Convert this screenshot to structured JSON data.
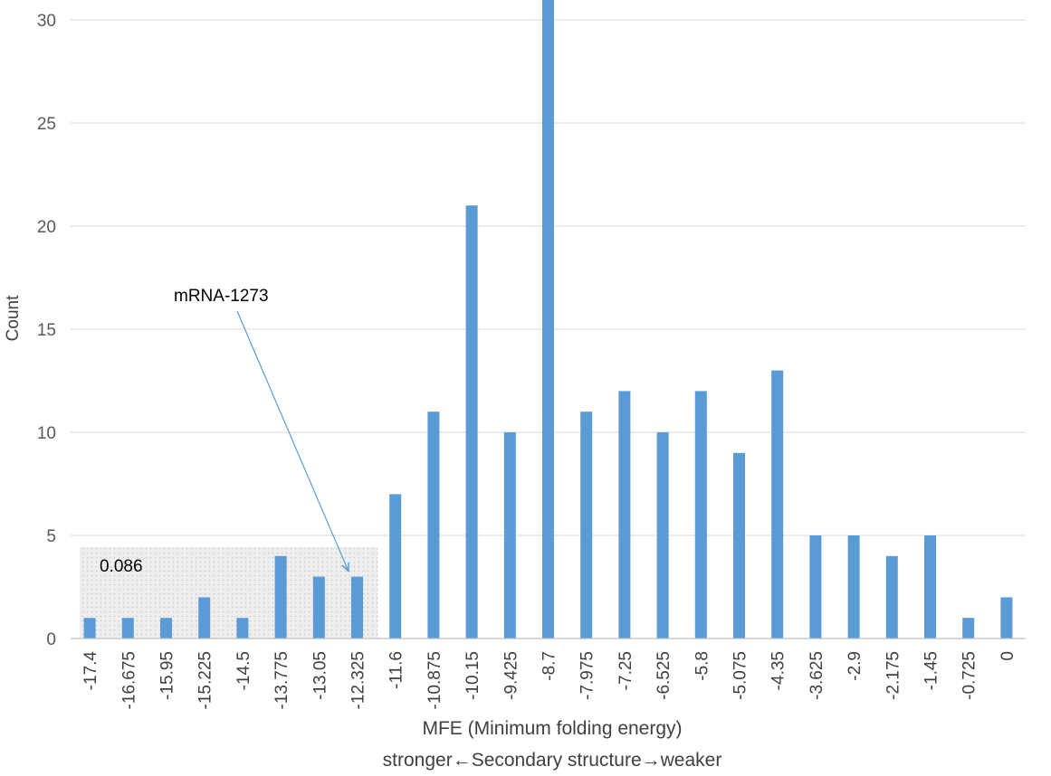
{
  "chart_data": {
    "type": "bar",
    "categories": [
      "-17.4",
      "-16.675",
      "-15.95",
      "-15.225",
      "-14.5",
      "-13.775",
      "-13.05",
      "-12.325",
      "-11.6",
      "-10.875",
      "-10.15",
      "-9.425",
      "-8.7",
      "-7.975",
      "-7.25",
      "-6.525",
      "-5.8",
      "-5.075",
      "-4.35",
      "-3.625",
      "-2.9",
      "-2.175",
      "-1.45",
      "-0.725",
      "0"
    ],
    "values": [
      1,
      1,
      1,
      2,
      1,
      4,
      3,
      3,
      7,
      11,
      21,
      10,
      31,
      11,
      12,
      10,
      12,
      9,
      13,
      5,
      5,
      4,
      5,
      1,
      2
    ],
    "xlabel": "MFE (Minimum folding energy)",
    "xlabel_sub": "stronger←Secondary structure→weaker",
    "ylabel": "Count",
    "ylim": [
      0,
      30
    ],
    "yticks": [
      0,
      5,
      10,
      15,
      20,
      25,
      30
    ],
    "grid": true,
    "bar_color": "#5b9bd5",
    "annotations": [
      {
        "text": "mRNA-1273",
        "points_to_category": "-12.325"
      },
      {
        "text": "0.086",
        "shaded_range": [
          "-17.4",
          "-12.325"
        ]
      }
    ]
  }
}
